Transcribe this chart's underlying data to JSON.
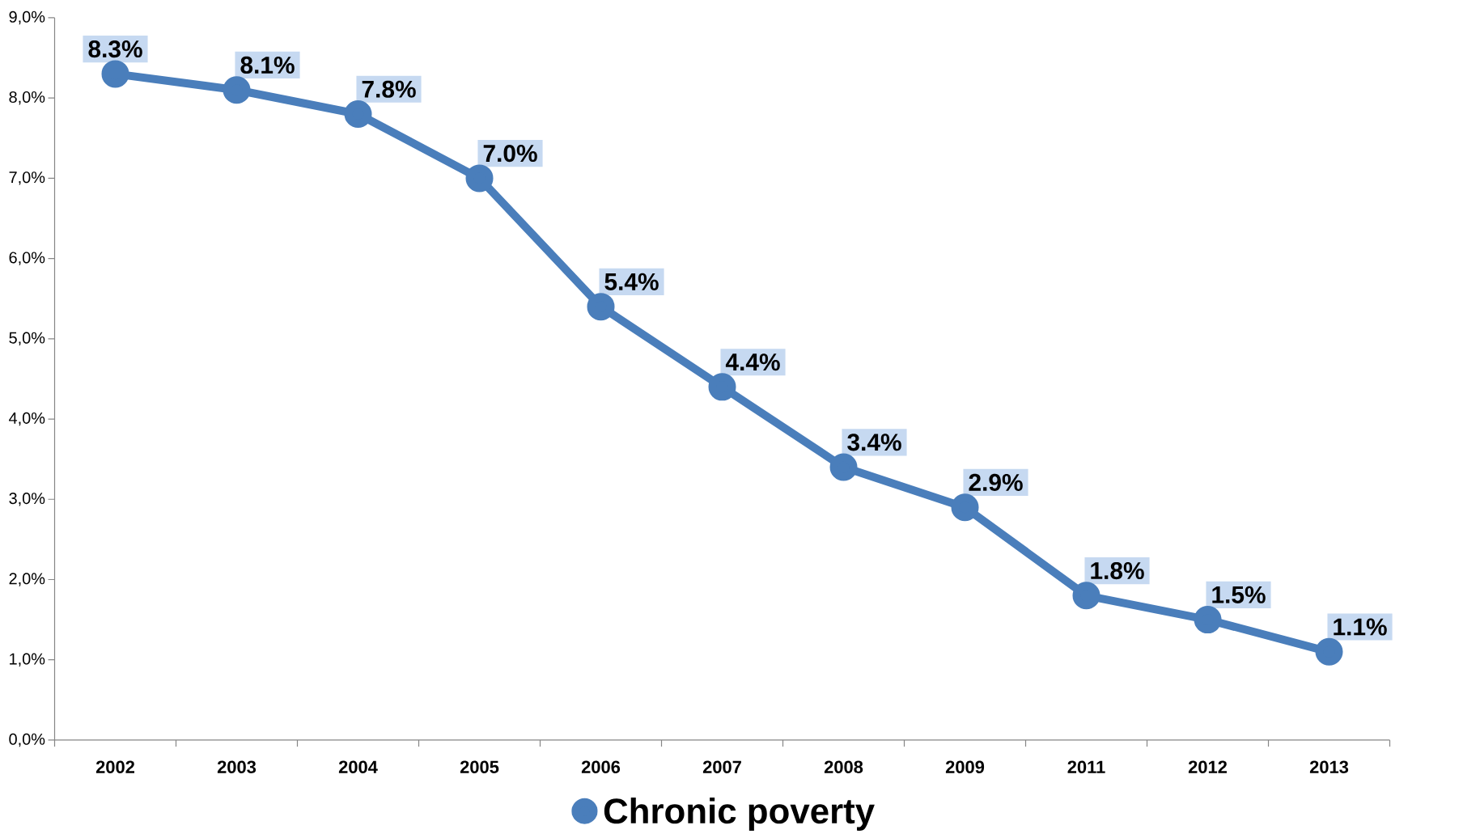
{
  "chart_data": {
    "type": "line",
    "categories": [
      "2002",
      "2003",
      "2004",
      "2005",
      "2006",
      "2007",
      "2008",
      "2009",
      "2011",
      "2012",
      "2013"
    ],
    "series": [
      {
        "name": "Chronic poverty",
        "color": "#4a7ebb",
        "values": [
          8.3,
          8.1,
          7.8,
          7.0,
          5.4,
          4.4,
          3.4,
          2.9,
          1.8,
          1.5,
          1.1
        ],
        "value_labels": [
          "8.3%",
          "8.1%",
          "7.8%",
          "7.0%",
          "5.4%",
          "4.4%",
          "3.4%",
          "2.9%",
          "1.8%",
          "1.5%",
          "1.1%"
        ]
      }
    ],
    "ylim": [
      0,
      9
    ],
    "yticks": [
      {
        "value": 0,
        "label": "0,0%"
      },
      {
        "value": 1,
        "label": "1,0%"
      },
      {
        "value": 2,
        "label": "2,0%"
      },
      {
        "value": 3,
        "label": "3,0%"
      },
      {
        "value": 4,
        "label": "4,0%"
      },
      {
        "value": 5,
        "label": "5,0%"
      },
      {
        "value": 6,
        "label": "6,0%"
      },
      {
        "value": 7,
        "label": "7,0%"
      },
      {
        "value": 8,
        "label": "8,0%"
      },
      {
        "value": 9,
        "label": "9,0%"
      }
    ],
    "grid": false,
    "legend": "bottom",
    "marker": "circle",
    "line_style": "solid"
  }
}
